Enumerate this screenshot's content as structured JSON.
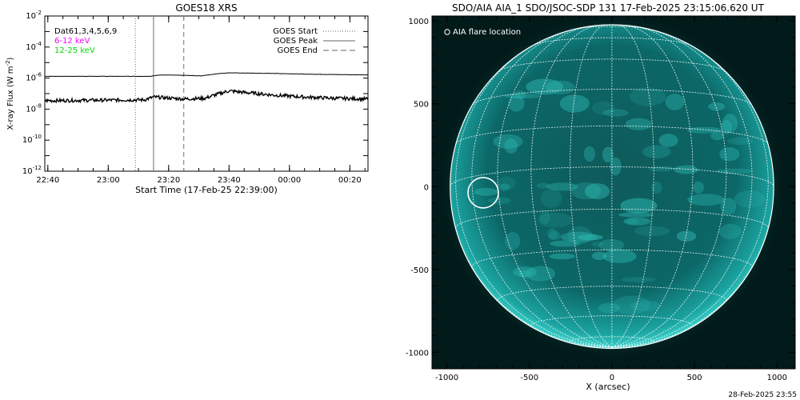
{
  "footer": {
    "timestamp": "28-Feb-2025 23:55"
  },
  "chart_data": [
    {
      "type": "line",
      "title": "GOES18 XRS",
      "xlabel": "Start Time (17-Feb-25 22:39:00)",
      "ylabel": "X-ray Flux (W m",
      "ylabel_sup": "-2",
      "ylabel_close": ")",
      "y_scale": "log",
      "ylim": [
        1e-12,
        0.01
      ],
      "xlim": [
        "22:39",
        "00:26"
      ],
      "x_ticks": [
        "22:40",
        "23:00",
        "23:20",
        "23:40",
        "00:00",
        "00:20"
      ],
      "y_ticks": [
        {
          "base": "10",
          "exp": "-2",
          "value": 0.01
        },
        {
          "base": "10",
          "exp": "-4",
          "value": 0.0001
        },
        {
          "base": "10",
          "exp": "-6",
          "value": 1e-06
        },
        {
          "base": "10",
          "exp": "-8",
          "value": 1e-08
        },
        {
          "base": "10",
          "exp": "-10",
          "value": 1e-10
        },
        {
          "base": "10",
          "exp": "-12",
          "value": 1e-12
        }
      ],
      "left_legend": [
        {
          "text": "Dat61,3,4,5,6,9",
          "color": "#000000"
        },
        {
          "text": "6-12 keV",
          "color": "#ff00ff"
        },
        {
          "text": "12-25 keV",
          "color": "#00dd00"
        }
      ],
      "right_legend": [
        {
          "text": "GOES Start",
          "style": "dotted"
        },
        {
          "text": "GOES Peak",
          "style": "solid"
        },
        {
          "text": "GOES End",
          "style": "dashed"
        }
      ],
      "event_lines": [
        {
          "name": "GOES Start",
          "time": "23:09",
          "style": "dotted"
        },
        {
          "name": "GOES Peak",
          "time": "23:15",
          "style": "solid"
        },
        {
          "name": "GOES End",
          "time": "23:25",
          "style": "dashed"
        }
      ],
      "series": [
        {
          "color": "#000000",
          "x": [
            "22:39",
            "23:00",
            "23:14",
            "23:17",
            "23:25",
            "23:31",
            "23:36",
            "23:40",
            "23:45",
            "23:55",
            "00:05",
            "00:15",
            "00:26"
          ],
          "y": [
            1.3e-06,
            1.3e-06,
            1.3e-06,
            1.6e-06,
            1.5e-06,
            1.4e-06,
            1.9e-06,
            2.2e-06,
            2.1e-06,
            2e-06,
            1.8e-06,
            1.7e-06,
            1.6e-06
          ]
        },
        {
          "color": "#000000",
          "x": [
            "22:39",
            "23:00",
            "23:12",
            "23:15",
            "23:25",
            "23:32",
            "23:36",
            "23:40",
            "23:45",
            "23:55",
            "00:05",
            "00:15",
            "00:26"
          ],
          "y": [
            3.5e-08,
            3.8e-08,
            4e-08,
            6e-08,
            4.5e-08,
            5e-08,
            9e-08,
            1.5e-07,
            1.2e-07,
            8e-08,
            6e-08,
            5e-08,
            4.5e-08
          ]
        }
      ]
    },
    {
      "type": "image",
      "title": "SDO/AIA AIA_1 SDO/JSOC-SDP 131 17-Feb-2025 23:15:06.620 UT",
      "xlabel": "X (arcsec)",
      "x_ticks": [
        "-1000",
        "-500",
        "0",
        "500",
        "1000"
      ],
      "y_ticks": [
        "1000",
        "500",
        "0",
        "-500",
        "-1000"
      ],
      "xlim": [
        -1090,
        1110
      ],
      "ylim": [
        -1100,
        1030
      ],
      "legend": "AIA flare location",
      "flare_location_arcsec": {
        "x": -780,
        "y": -37
      },
      "solar_radius_arcsec": 980,
      "colors": {
        "background": "#021a1a",
        "disk": "#0b5b5b",
        "grid": "#ffffff"
      }
    }
  ]
}
